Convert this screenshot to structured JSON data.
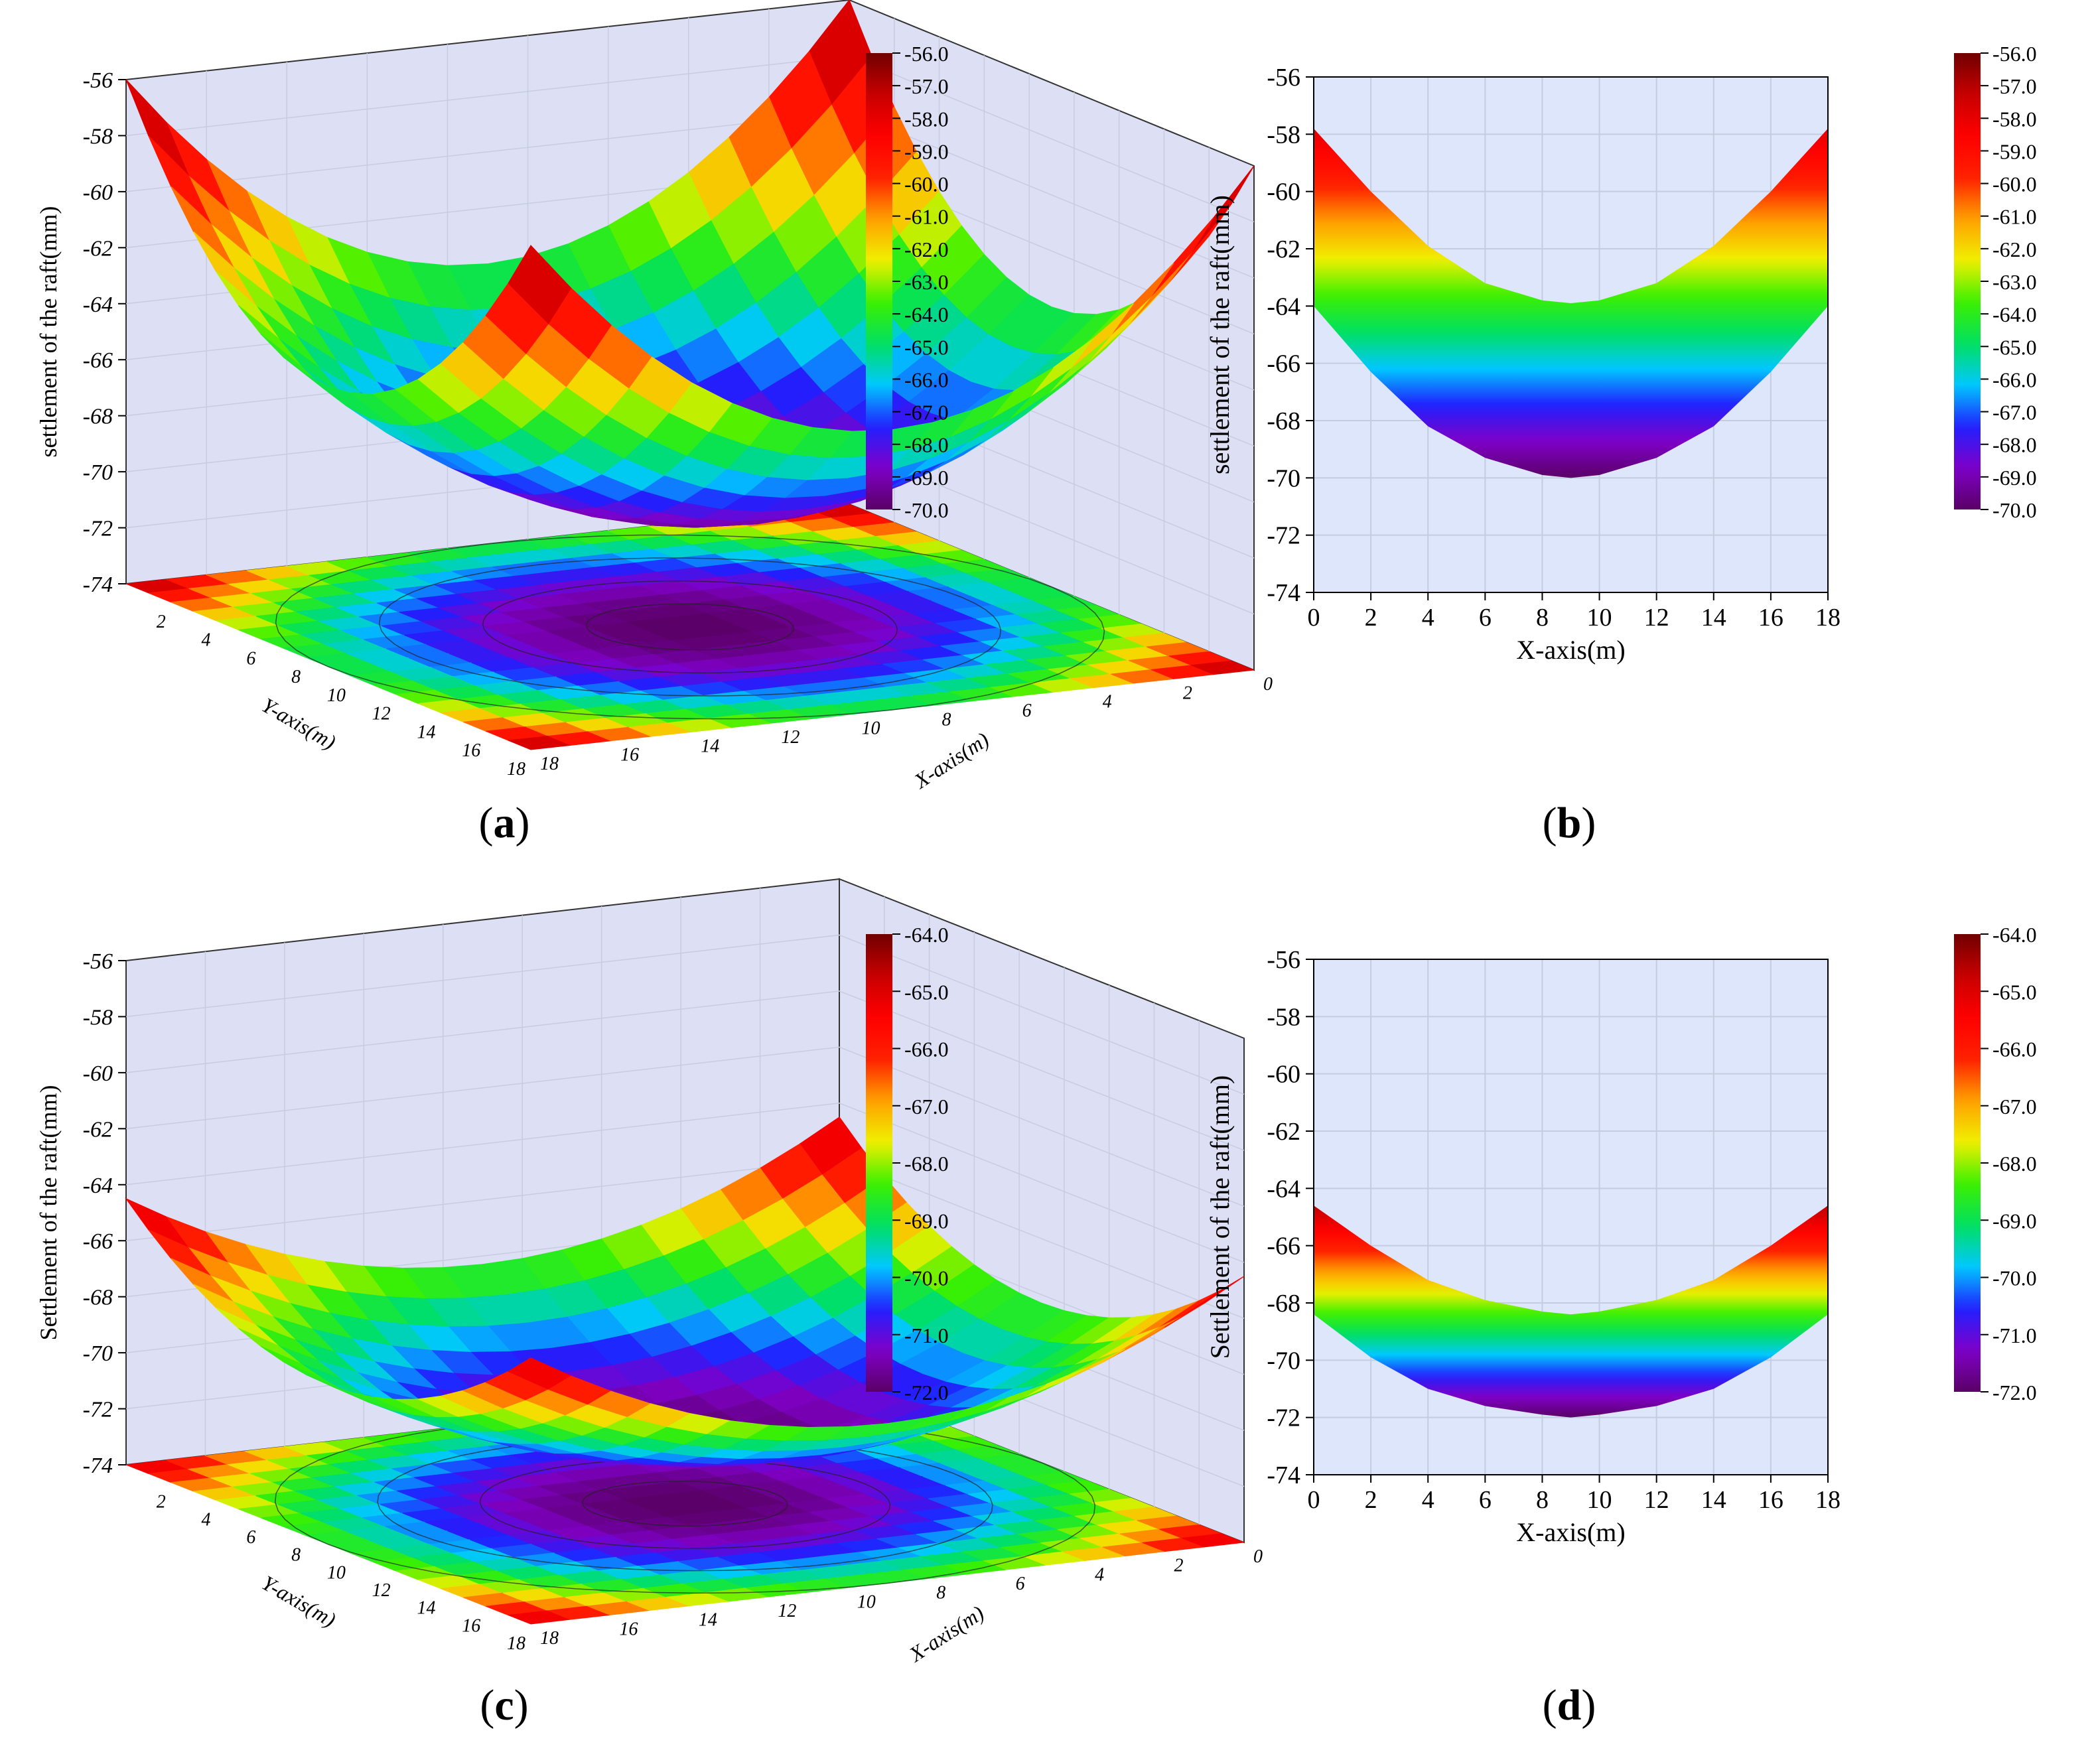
{
  "colorscale": [
    "#5a0066",
    "#8000c8",
    "#2020ff",
    "#00c8ff",
    "#00e060",
    "#3cf000",
    "#f0f000",
    "#ffa000",
    "#ff2000",
    "#ff0000",
    "#c80000",
    "#700000"
  ],
  "panel_labels": [
    "(a)",
    "(b)",
    "(c)",
    "(d)"
  ],
  "label_letters": [
    "a",
    "b",
    "c",
    "d"
  ],
  "chart_data": [
    {
      "panel": "a",
      "type": "surface3d",
      "zlabel": "settlement of the raft(mm)",
      "xlabel": "X-axis(m)",
      "ylabel": "Y-axis(m)",
      "zlim": [
        -74,
        -56
      ],
      "z_ticks": [
        "-74",
        "-72",
        "-70",
        "-68",
        "-66",
        "-64",
        "-62",
        "-60",
        "-58",
        "-56"
      ],
      "xy_ticks_x": [
        "0",
        "2",
        "4",
        "6",
        "8",
        "10",
        "12",
        "14",
        "16",
        "18"
      ],
      "xy_ticks_y": [
        "2",
        "4",
        "6",
        "8",
        "10",
        "12",
        "14",
        "16",
        "18"
      ],
      "z_min": -70.0,
      "z_corner": -56.0,
      "z_edge_mid": -64.0,
      "colorbar": [
        "-56.0",
        "-57.0",
        "-58.0",
        "-59.0",
        "-60.0",
        "-61.0",
        "-62.0",
        "-63.0",
        "-64.0",
        "-65.0",
        "-66.0",
        "-67.0",
        "-68.0",
        "-69.0",
        "-70.0"
      ]
    },
    {
      "panel": "b",
      "type": "area",
      "ylabel": "settlement of the raft(mm)",
      "xlabel": "X-axis(m)",
      "xlim": [
        0,
        18
      ],
      "ylim": [
        -74,
        -56
      ],
      "x_ticks": [
        "0",
        "2",
        "4",
        "6",
        "8",
        "10",
        "12",
        "14",
        "16",
        "18"
      ],
      "y_ticks": [
        "-74",
        "-72",
        "-70",
        "-68",
        "-66",
        "-64",
        "-62",
        "-60",
        "-58",
        "-56"
      ],
      "upper": {
        "x": [
          0,
          2,
          4,
          6,
          8,
          9,
          10,
          12,
          14,
          16,
          18
        ],
        "y": [
          -57.8,
          -60.0,
          -61.9,
          -63.2,
          -63.8,
          -63.9,
          -63.8,
          -63.2,
          -61.9,
          -60.0,
          -57.8
        ]
      },
      "lower": {
        "x": [
          0,
          2,
          4,
          6,
          8,
          9,
          10,
          12,
          14,
          16,
          18
        ],
        "y": [
          -64.0,
          -66.3,
          -68.2,
          -69.3,
          -69.9,
          -70.0,
          -69.9,
          -69.3,
          -68.2,
          -66.3,
          -64.0
        ]
      },
      "color_range": [
        -70.0,
        -56.0
      ],
      "colorbar": [
        "-56.0",
        "-57.0",
        "-58.0",
        "-59.0",
        "-60.0",
        "-61.0",
        "-62.0",
        "-63.0",
        "-64.0",
        "-65.0",
        "-66.0",
        "-67.0",
        "-68.0",
        "-69.0",
        "-70.0"
      ]
    },
    {
      "panel": "c",
      "type": "surface3d",
      "zlabel": "Settlement of the raft(mm)",
      "xlabel": "X-axis(m)",
      "ylabel": "Y-axis(m)",
      "zlim": [
        -74,
        -56
      ],
      "z_ticks": [
        "-74",
        "-72",
        "-70",
        "-68",
        "-66",
        "-64",
        "-62",
        "-60",
        "-58",
        "-56"
      ],
      "xy_ticks_x": [
        "0",
        "2",
        "4",
        "6",
        "8",
        "10",
        "12",
        "14",
        "16",
        "18"
      ],
      "xy_ticks_y": [
        "2",
        "4",
        "6",
        "8",
        "10",
        "12",
        "14",
        "16",
        "18"
      ],
      "z_min": -72.0,
      "z_corner": -64.5,
      "z_edge_mid": -68.3,
      "colorbar": [
        "-64.0",
        "-65.0",
        "-66.0",
        "-67.0",
        "-68.0",
        "-69.0",
        "-70.0",
        "-71.0",
        "-72.0"
      ]
    },
    {
      "panel": "d",
      "type": "area",
      "ylabel": "Settlement of the raft(mm)",
      "xlabel": "X-axis(m)",
      "xlim": [
        0,
        18
      ],
      "ylim": [
        -74,
        -56
      ],
      "x_ticks": [
        "0",
        "2",
        "4",
        "6",
        "8",
        "10",
        "12",
        "14",
        "16",
        "18"
      ],
      "y_ticks": [
        "-74",
        "-72",
        "-70",
        "-68",
        "-66",
        "-64",
        "-62",
        "-60",
        "-58",
        "-56"
      ],
      "upper": {
        "x": [
          0,
          2,
          4,
          6,
          8,
          9,
          10,
          12,
          14,
          16,
          18
        ],
        "y": [
          -64.6,
          -66.0,
          -67.2,
          -67.9,
          -68.3,
          -68.4,
          -68.3,
          -67.9,
          -67.2,
          -66.0,
          -64.6
        ]
      },
      "lower": {
        "x": [
          0,
          2,
          4,
          6,
          8,
          9,
          10,
          12,
          14,
          16,
          18
        ],
        "y": [
          -68.4,
          -69.9,
          -71.0,
          -71.6,
          -71.9,
          -72.0,
          -71.9,
          -71.6,
          -71.0,
          -69.9,
          -68.4
        ]
      },
      "color_range": [
        -72.0,
        -64.0
      ],
      "colorbar": [
        "-64.0",
        "-65.0",
        "-66.0",
        "-67.0",
        "-68.0",
        "-69.0",
        "-70.0",
        "-71.0",
        "-72.0"
      ]
    }
  ]
}
